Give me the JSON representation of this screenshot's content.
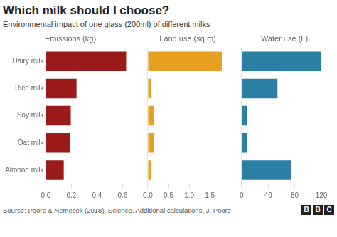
{
  "title": "Which milk should I choose?",
  "subtitle": "Environmental impact of one glass (200ml) of different milks",
  "annotations": [
    "Source: Poore & Nemecek (2018), Science. Additional calculations, J. Poore",
    "BBC"
  ],
  "chart_data": [
    {
      "type": "bar",
      "orientation": "horizontal",
      "title": "Emissions (kg)",
      "categories": [
        "Dairy milk",
        "Rice milk",
        "Soy milk",
        "Oat milk",
        "Almond milk"
      ],
      "values": [
        0.628,
        0.24,
        0.195,
        0.19,
        0.14
      ],
      "color": "#9B1B1B",
      "xlim": [
        0,
        0.72
      ],
      "xticks": [
        {
          "value": 0,
          "label": "0.0"
        },
        0.2,
        0.4,
        0.6
      ],
      "grid": false
    },
    {
      "type": "bar",
      "orientation": "horizontal",
      "title": "Land use (sq m)",
      "categories": [
        "Dairy milk",
        "Rice milk",
        "Soy milk",
        "Oat milk",
        "Almond milk"
      ],
      "values": [
        1.79,
        0.07,
        0.14,
        0.15,
        0.07
      ],
      "color": "#E8A020",
      "xlim": [
        0,
        2.1
      ],
      "xticks": [
        {
          "value": 0,
          "label": "0.0"
        },
        0.5,
        {
          "value": 1,
          "label": "1.0"
        },
        1.5
      ],
      "grid": false,
      "tick_labels": "x"
    },
    {
      "type": "bar",
      "orientation": "horizontal",
      "title": "Water use (L)",
      "categories": [
        "Dairy milk",
        "Rice milk",
        "Soy milk",
        "Oat milk",
        "Almond milk"
      ],
      "values": [
        120.0,
        54.0,
        8.0,
        8.0,
        74.0
      ],
      "color": "#2B7FA4",
      "xlim": [
        0,
        135
      ],
      "xticks": [
        0,
        40,
        80,
        120
      ],
      "grid": false,
      "tick_labels": "x"
    }
  ]
}
